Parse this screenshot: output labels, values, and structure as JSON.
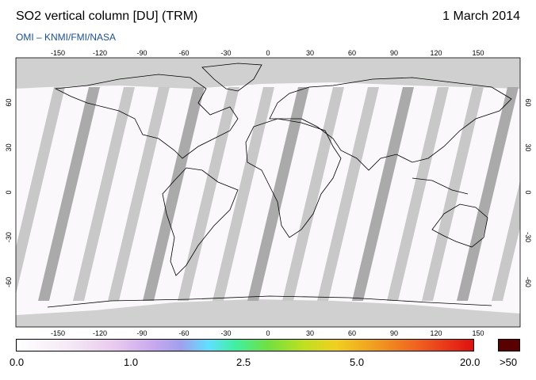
{
  "header": {
    "title": "SO2 vertical column [DU] (TRM)",
    "date": "1 March 2014",
    "source": "OMI  –  KNMI/FMI/NASA"
  },
  "map": {
    "lon_ticks": [
      "-150",
      "-120",
      "-90",
      "-60",
      "-30",
      "0",
      "30",
      "60",
      "90",
      "120",
      "150"
    ],
    "lat_ticks": [
      "60",
      "30",
      "0",
      "-30",
      "-60"
    ],
    "colors": {
      "land_outline": "#000000",
      "nodata_swath": "#c8c8c8",
      "nodata_dark": "#aaaaaa",
      "polar_nodata": "#d0d0d0"
    }
  },
  "colorbar": {
    "labels": [
      "0.0",
      "1.0",
      "2.5",
      "5.0",
      "20.0",
      ">50"
    ],
    "over_color": "#5a0000"
  }
}
